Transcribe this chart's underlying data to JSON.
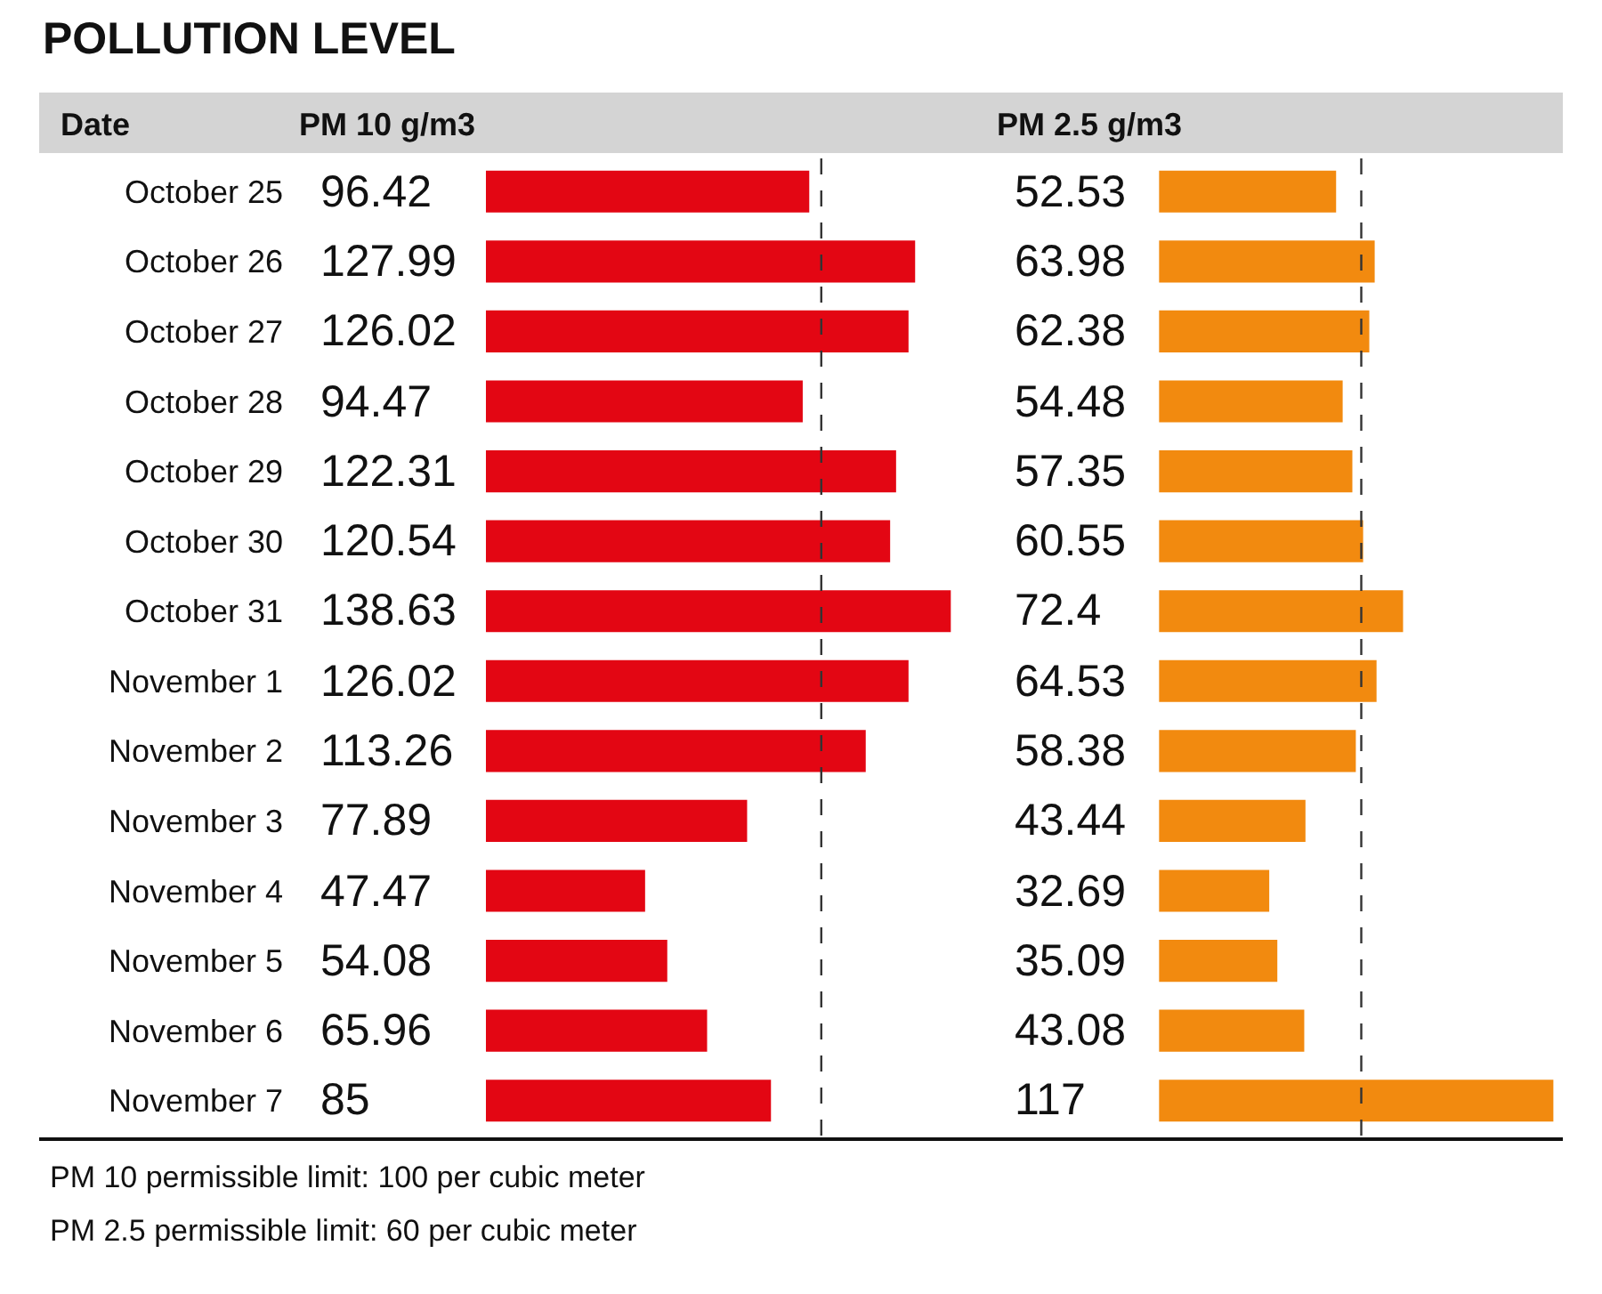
{
  "chart_data": [
    {
      "type": "bar",
      "orientation": "horizontal",
      "title": "POLLUTION LEVEL",
      "subtitle": "PM 10 g/m3",
      "ylabel": "Date",
      "categories": [
        "October 25",
        "October 26",
        "October 27",
        "October 28",
        "October 29",
        "October 30",
        "October 31",
        "November 1",
        "November 2",
        "November 3",
        "November 4",
        "November 5",
        "November 6",
        "November 7"
      ],
      "values": [
        96.42,
        127.99,
        126.02,
        94.47,
        122.31,
        120.54,
        138.63,
        126.02,
        113.26,
        77.89,
        47.47,
        54.08,
        65.96,
        85
      ],
      "color": "#e30613",
      "data_labels": true,
      "tick_labels": "y",
      "grid": false,
      "ref_lines": [
        {
          "axis": "x",
          "value": 100,
          "color": "#333333",
          "line_style": "dashed"
        }
      ],
      "annotations": [
        "PM 10 permissible limit: 100 per cubic meter",
        "PM 2.5 permissible limit: 60 per cubic meter"
      ]
    },
    {
      "type": "bar",
      "orientation": "horizontal",
      "title": "PM 2.5 g/m3",
      "categories": [
        null,
        null,
        null,
        null,
        null,
        null,
        null,
        null,
        null,
        null,
        null,
        null,
        null,
        null
      ],
      "values": [
        52.53,
        63.98,
        62.38,
        54.48,
        57.35,
        60.55,
        72.4,
        64.53,
        58.38,
        43.44,
        32.69,
        35.09,
        43.08,
        117
      ],
      "color": "#f28a0f",
      "data_labels": true,
      "tick_labels": false,
      "grid": false,
      "ref_lines": [
        {
          "axis": "x",
          "value": 60,
          "color": "#333333",
          "line_style": "dashed"
        }
      ]
    }
  ]
}
